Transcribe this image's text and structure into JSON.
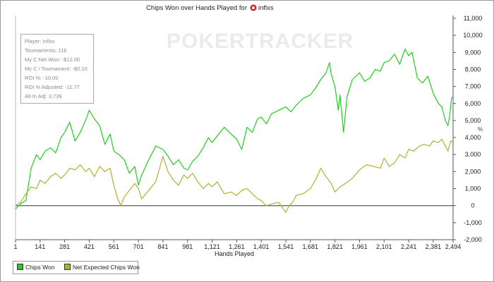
{
  "chart": {
    "title": "Chips Won over Hands Played for",
    "player_name": "inflxs",
    "xlabel": "Hands Played",
    "watermark": "POKERTRACKER",
    "side_mark": "%"
  },
  "stats": [
    "Player: inflxs",
    "Tournaments: 116",
    "My C Net Won: -$12.00",
    "My C / Tournament: -$0.10",
    "ROI %: -10.00",
    "ROI % Adjusted: -11.77",
    "All-In Adj: 3,739"
  ],
  "colors": {
    "chips_won": "#22cc22",
    "net_expected": "#b0b030",
    "axis": "#555555",
    "zero_line": "#333333",
    "logo_red": "#cc2222"
  },
  "chart_data": {
    "type": "line",
    "title": "Chips Won over Hands Played for inflxs",
    "xlabel": "Hands Played",
    "ylabel": "",
    "xlim": [
      1,
      2494
    ],
    "ylim": [
      -2000,
      11000
    ],
    "x_ticks": [
      1,
      141,
      281,
      421,
      561,
      701,
      841,
      981,
      1121,
      1261,
      1401,
      1541,
      1681,
      1821,
      1961,
      2101,
      2241,
      2381,
      2494
    ],
    "x_tick_labels": [
      "1",
      "141",
      "281",
      "421",
      "561",
      "701",
      "841",
      "981",
      "1,121",
      "1,261",
      "1,401",
      "1,541",
      "1,681",
      "1,821",
      "1,961",
      "2,101",
      "2,241",
      "2,381",
      "2,494"
    ],
    "y_ticks": [
      -2000,
      -1000,
      0,
      1000,
      2000,
      3000,
      4000,
      5000,
      6000,
      7000,
      8000,
      9000,
      10000,
      11000
    ],
    "y_tick_labels": [
      "-2,000",
      "-1,000",
      "0",
      "1,000",
      "2,000",
      "3,000",
      "4,000",
      "5,000",
      "6,000",
      "7,000",
      "8,000",
      "9,000",
      "10,000",
      "11,000"
    ],
    "y_axis_side": "right",
    "legend_position": "bottom-left",
    "series": [
      {
        "name": "Chips Won",
        "color": "#22cc22",
        "points": [
          [
            1,
            -200
          ],
          [
            30,
            100
          ],
          [
            60,
            300
          ],
          [
            90,
            2200
          ],
          [
            120,
            3000
          ],
          [
            141,
            2700
          ],
          [
            170,
            3200
          ],
          [
            200,
            3400
          ],
          [
            230,
            3100
          ],
          [
            260,
            4000
          ],
          [
            281,
            4300
          ],
          [
            310,
            4900
          ],
          [
            340,
            3800
          ],
          [
            370,
            4300
          ],
          [
            400,
            5000
          ],
          [
            421,
            5600
          ],
          [
            450,
            5100
          ],
          [
            480,
            4700
          ],
          [
            510,
            3600
          ],
          [
            540,
            4200
          ],
          [
            561,
            3200
          ],
          [
            590,
            3000
          ],
          [
            620,
            2700
          ],
          [
            650,
            1900
          ],
          [
            680,
            2300
          ],
          [
            701,
            1200
          ],
          [
            720,
            1800
          ],
          [
            760,
            2700
          ],
          [
            800,
            3500
          ],
          [
            841,
            3300
          ],
          [
            870,
            2900
          ],
          [
            900,
            2400
          ],
          [
            930,
            2700
          ],
          [
            960,
            2200
          ],
          [
            981,
            2100
          ],
          [
            1010,
            2600
          ],
          [
            1040,
            2900
          ],
          [
            1070,
            3400
          ],
          [
            1100,
            4000
          ],
          [
            1121,
            3700
          ],
          [
            1150,
            4100
          ],
          [
            1190,
            4600
          ],
          [
            1230,
            4200
          ],
          [
            1261,
            3900
          ],
          [
            1290,
            3300
          ],
          [
            1320,
            4600
          ],
          [
            1350,
            4300
          ],
          [
            1380,
            5100
          ],
          [
            1401,
            5200
          ],
          [
            1430,
            4800
          ],
          [
            1460,
            5400
          ],
          [
            1500,
            5600
          ],
          [
            1541,
            5800
          ],
          [
            1570,
            5500
          ],
          [
            1600,
            5900
          ],
          [
            1640,
            6300
          ],
          [
            1681,
            6500
          ],
          [
            1710,
            6900
          ],
          [
            1740,
            7400
          ],
          [
            1770,
            7800
          ],
          [
            1790,
            8400
          ],
          [
            1800,
            7700
          ],
          [
            1821,
            7000
          ],
          [
            1840,
            5600
          ],
          [
            1850,
            6500
          ],
          [
            1870,
            4300
          ],
          [
            1890,
            6400
          ],
          [
            1920,
            7400
          ],
          [
            1961,
            7800
          ],
          [
            1990,
            7300
          ],
          [
            2020,
            7500
          ],
          [
            2050,
            8000
          ],
          [
            2080,
            7900
          ],
          [
            2101,
            8400
          ],
          [
            2130,
            8500
          ],
          [
            2160,
            8900
          ],
          [
            2190,
            8300
          ],
          [
            2220,
            9200
          ],
          [
            2241,
            8800
          ],
          [
            2260,
            9000
          ],
          [
            2290,
            7500
          ],
          [
            2320,
            7200
          ],
          [
            2350,
            7600
          ],
          [
            2381,
            6600
          ],
          [
            2410,
            6000
          ],
          [
            2430,
            5800
          ],
          [
            2450,
            5000
          ],
          [
            2465,
            4700
          ],
          [
            2475,
            5300
          ],
          [
            2485,
            6300
          ],
          [
            2494,
            6400
          ]
        ]
      },
      {
        "name": "Net Expected Chips Won",
        "color": "#b0b030",
        "points": [
          [
            1,
            0
          ],
          [
            30,
            200
          ],
          [
            60,
            700
          ],
          [
            90,
            1100
          ],
          [
            120,
            1000
          ],
          [
            141,
            1500
          ],
          [
            170,
            1300
          ],
          [
            200,
            1700
          ],
          [
            230,
            1900
          ],
          [
            260,
            1600
          ],
          [
            281,
            1800
          ],
          [
            310,
            2200
          ],
          [
            340,
            2100
          ],
          [
            370,
            2400
          ],
          [
            400,
            2000
          ],
          [
            421,
            2200
          ],
          [
            450,
            1700
          ],
          [
            480,
            2300
          ],
          [
            510,
            2000
          ],
          [
            540,
            2200
          ],
          [
            561,
            1200
          ],
          [
            580,
            500
          ],
          [
            600,
            0
          ],
          [
            620,
            500
          ],
          [
            650,
            900
          ],
          [
            680,
            1300
          ],
          [
            701,
            1000
          ],
          [
            720,
            400
          ],
          [
            760,
            900
          ],
          [
            800,
            1400
          ],
          [
            841,
            2900
          ],
          [
            870,
            2000
          ],
          [
            900,
            1500
          ],
          [
            930,
            1200
          ],
          [
            960,
            1800
          ],
          [
            981,
            1600
          ],
          [
            1010,
            1900
          ],
          [
            1040,
            1400
          ],
          [
            1070,
            1000
          ],
          [
            1100,
            1300
          ],
          [
            1121,
            1100
          ],
          [
            1150,
            1400
          ],
          [
            1190,
            700
          ],
          [
            1230,
            800
          ],
          [
            1261,
            600
          ],
          [
            1290,
            900
          ],
          [
            1320,
            1000
          ],
          [
            1350,
            700
          ],
          [
            1380,
            400
          ],
          [
            1401,
            300
          ],
          [
            1430,
            0
          ],
          [
            1460,
            100
          ],
          [
            1500,
            200
          ],
          [
            1541,
            -400
          ],
          [
            1560,
            0
          ],
          [
            1580,
            200
          ],
          [
            1600,
            600
          ],
          [
            1640,
            700
          ],
          [
            1681,
            1000
          ],
          [
            1710,
            1500
          ],
          [
            1740,
            2200
          ],
          [
            1770,
            1700
          ],
          [
            1800,
            1300
          ],
          [
            1821,
            800
          ],
          [
            1850,
            1100
          ],
          [
            1880,
            1300
          ],
          [
            1920,
            1600
          ],
          [
            1961,
            2100
          ],
          [
            2000,
            2400
          ],
          [
            2040,
            2300
          ],
          [
            2080,
            2200
          ],
          [
            2101,
            2800
          ],
          [
            2130,
            2300
          ],
          [
            2160,
            2500
          ],
          [
            2190,
            3000
          ],
          [
            2220,
            2800
          ],
          [
            2241,
            3300
          ],
          [
            2270,
            3200
          ],
          [
            2300,
            3500
          ],
          [
            2330,
            3600
          ],
          [
            2360,
            3500
          ],
          [
            2381,
            3800
          ],
          [
            2410,
            3700
          ],
          [
            2430,
            3900
          ],
          [
            2450,
            3500
          ],
          [
            2465,
            3200
          ],
          [
            2480,
            3800
          ],
          [
            2494,
            3700
          ]
        ]
      }
    ]
  }
}
